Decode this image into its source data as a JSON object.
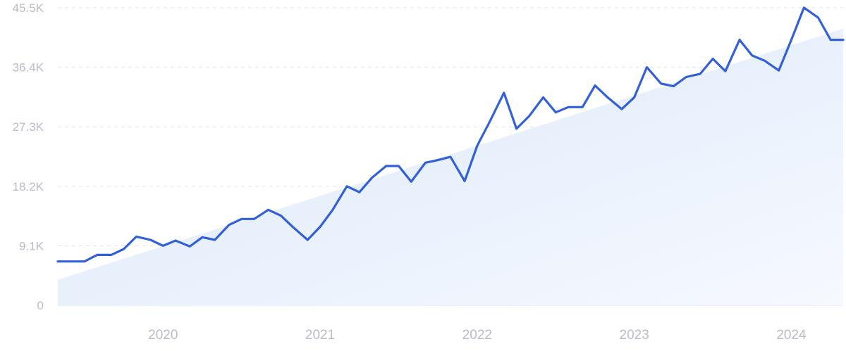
{
  "chart_data": {
    "type": "line",
    "title": "",
    "xlabel": "",
    "ylabel": "",
    "ylim": [
      0,
      45500
    ],
    "y_ticks": [
      0,
      9100,
      18200,
      27300,
      36400,
      45500
    ],
    "y_tick_labels": [
      "0",
      "9.1K",
      "18.2K",
      "27.3K",
      "36.4K",
      "45.5K"
    ],
    "x_ticks": [
      2020,
      2021,
      2022,
      2023,
      2024
    ],
    "x_tick_labels": [
      "2020",
      "2021",
      "2022",
      "2023",
      "2024"
    ],
    "xlim": [
      2019.33,
      2024.33
    ],
    "grid": true,
    "colors": {
      "line": "#3360d9",
      "trend_fill_top": "#dbe8fb",
      "trend_fill_bottom": "#f6f9fe",
      "tick": "#b9bcc8"
    },
    "trend": {
      "x": [
        2019.33,
        2024.33
      ],
      "y": [
        3900,
        42300
      ]
    },
    "series": [
      {
        "x": [
          2019.33,
          2019.42,
          2019.5,
          2019.58,
          2019.67,
          2019.75,
          2019.83,
          2019.92,
          2020.0,
          2020.08,
          2020.17,
          2020.25,
          2020.33,
          2020.42,
          2020.5,
          2020.58,
          2020.67,
          2020.75,
          2020.83,
          2020.92,
          2021.0,
          2021.08,
          2021.17,
          2021.25,
          2021.33,
          2021.42,
          2021.5,
          2021.58,
          2021.67,
          2021.75,
          2021.83,
          2021.92,
          2022.0,
          2022.08,
          2022.17,
          2022.25,
          2022.33,
          2022.42,
          2022.5,
          2022.58,
          2022.67,
          2022.75,
          2022.83,
          2022.92,
          2023.0,
          2023.08,
          2023.17,
          2023.25,
          2023.33,
          2023.42,
          2023.5,
          2023.58,
          2023.67,
          2023.75,
          2023.83,
          2023.92,
          2024.0,
          2024.08,
          2024.17,
          2024.25,
          2024.33
        ],
        "y": [
          6700,
          6700,
          6700,
          7700,
          7700,
          8600,
          10500,
          10000,
          9100,
          9900,
          9000,
          10400,
          10000,
          12300,
          13200,
          13200,
          14600,
          13700,
          11900,
          10000,
          12000,
          14600,
          18200,
          17300,
          19500,
          21300,
          21300,
          18900,
          21800,
          22200,
          22700,
          19000,
          24400,
          28100,
          32500,
          27000,
          28900,
          31800,
          29500,
          30300,
          30300,
          33600,
          31800,
          30000,
          31800,
          36400,
          33900,
          33500,
          34900,
          35400,
          37700,
          35800,
          40600,
          38200,
          37400,
          35900,
          40600,
          45500,
          44000,
          40600,
          40600
        ]
      }
    ]
  }
}
